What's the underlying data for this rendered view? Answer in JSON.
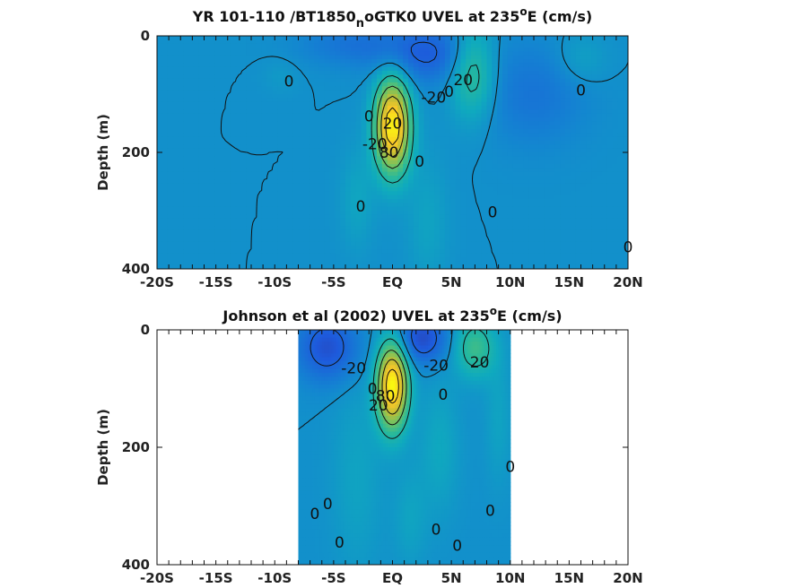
{
  "chart_data": [
    {
      "type": "heatmap",
      "title_main": "YR 101-110 /BT1850",
      "title_sub": "n",
      "title_rest": "oGTK0 UVEL at 235",
      "title_sup": "o",
      "title_end": "E (cm/s)",
      "xlabel": "",
      "ylabel": "Depth (m)",
      "xticks": [
        "-20S",
        "-15S",
        "-10S",
        "-5S",
        "EQ",
        "5N",
        "10N",
        "15N",
        "20N"
      ],
      "yticks": [
        "0",
        "200",
        "400"
      ],
      "xlim": [
        -20,
        20
      ],
      "ylim": [
        0,
        400
      ],
      "data_xrange": [
        -20,
        20
      ],
      "features": [
        {
          "lat": 0,
          "depth": 155,
          "sigma_lat": 1.0,
          "sigma_depth": 55,
          "u": 95
        },
        {
          "lat": 6.8,
          "depth": 60,
          "sigma_lat": 1.3,
          "sigma_depth": 55,
          "u": 30
        },
        {
          "lat": 3.0,
          "depth": 30,
          "sigma_lat": 2.8,
          "sigma_depth": 35,
          "u": -22
        },
        {
          "lat": -3.5,
          "depth": 15,
          "sigma_lat": 3.0,
          "sigma_depth": 25,
          "u": -12
        },
        {
          "lat": 12.0,
          "depth": 100,
          "sigma_lat": 3.0,
          "sigma_depth": 60,
          "u": -12
        },
        {
          "lat": 16.0,
          "depth": 40,
          "sigma_lat": 1.5,
          "sigma_depth": 30,
          "u": 8
        },
        {
          "lat": -3.0,
          "depth": 280,
          "sigma_lat": 1.0,
          "sigma_depth": 60,
          "u": 9
        },
        {
          "lat": 3.0,
          "depth": 320,
          "sigma_lat": 1.2,
          "sigma_depth": 80,
          "u": 8
        },
        {
          "lat": -9.5,
          "depth": 70,
          "sigma_lat": 1.0,
          "sigma_depth": 20,
          "u": 4
        }
      ],
      "contour_labels": [
        {
          "lat": -8.8,
          "depth": 78,
          "text": "0"
        },
        {
          "lat": -2.0,
          "depth": 138,
          "text": "0"
        },
        {
          "lat": 0.0,
          "depth": 150,
          "text": "20"
        },
        {
          "lat": -1.5,
          "depth": 185,
          "text": "-20"
        },
        {
          "lat": -0.3,
          "depth": 200,
          "text": "80"
        },
        {
          "lat": 2.3,
          "depth": 215,
          "text": "0"
        },
        {
          "lat": -2.7,
          "depth": 292,
          "text": "0"
        },
        {
          "lat": 3.5,
          "depth": 105,
          "text": "-20"
        },
        {
          "lat": 4.8,
          "depth": 95,
          "text": "0"
        },
        {
          "lat": 6.0,
          "depth": 75,
          "text": "20"
        },
        {
          "lat": 16.0,
          "depth": 93,
          "text": "0"
        },
        {
          "lat": 8.5,
          "depth": 302,
          "text": "0"
        },
        {
          "lat": 20.0,
          "depth": 362,
          "text": "0"
        }
      ]
    },
    {
      "type": "heatmap",
      "title_main": "Johnson et al (2002) UVEL at 235",
      "title_sup": "o",
      "title_end": "E (cm/s)",
      "xlabel": "",
      "ylabel": "Depth (m)",
      "xticks": [
        "-20S",
        "-15S",
        "-10S",
        "-5S",
        "EQ",
        "5N",
        "10N",
        "15N",
        "20N"
      ],
      "yticks": [
        "0",
        "200",
        "400"
      ],
      "xlim": [
        -20,
        20
      ],
      "ylim": [
        0,
        400
      ],
      "data_xrange": [
        -8,
        10
      ],
      "features": [
        {
          "lat": 0,
          "depth": 95,
          "sigma_lat": 0.9,
          "sigma_depth": 50,
          "u": 95
        },
        {
          "lat": 7.0,
          "depth": 30,
          "sigma_lat": 1.2,
          "sigma_depth": 35,
          "u": 30
        },
        {
          "lat": 2.5,
          "depth": 15,
          "sigma_lat": 1.5,
          "sigma_depth": 30,
          "u": -30
        },
        {
          "lat": -5.5,
          "depth": 30,
          "sigma_lat": 1.8,
          "sigma_depth": 40,
          "u": -28
        },
        {
          "lat": 4.0,
          "depth": 200,
          "sigma_lat": 1.2,
          "sigma_depth": 80,
          "u": 10
        },
        {
          "lat": -3.0,
          "depth": 250,
          "sigma_lat": 1.5,
          "sigma_depth": 120,
          "u": 8
        },
        {
          "lat": 9.0,
          "depth": 150,
          "sigma_lat": 0.8,
          "sigma_depth": 80,
          "u": 8
        },
        {
          "lat": 1.5,
          "depth": 320,
          "sigma_lat": 1.0,
          "sigma_depth": 60,
          "u": 8
        }
      ],
      "contour_labels": [
        {
          "lat": -3.3,
          "depth": 65,
          "text": "-20"
        },
        {
          "lat": -1.7,
          "depth": 100,
          "text": "0"
        },
        {
          "lat": -1.2,
          "depth": 128,
          "text": "20"
        },
        {
          "lat": -0.6,
          "depth": 112,
          "text": "80"
        },
        {
          "lat": 3.7,
          "depth": 60,
          "text": "-20"
        },
        {
          "lat": 4.3,
          "depth": 110,
          "text": "0"
        },
        {
          "lat": 7.4,
          "depth": 55,
          "text": "20"
        },
        {
          "lat": 10.0,
          "depth": 233,
          "text": "0"
        },
        {
          "lat": -6.6,
          "depth": 313,
          "text": "0"
        },
        {
          "lat": -5.5,
          "depth": 296,
          "text": "0"
        },
        {
          "lat": 8.3,
          "depth": 308,
          "text": "0"
        },
        {
          "lat": 3.7,
          "depth": 340,
          "text": "0"
        },
        {
          "lat": 5.5,
          "depth": 367,
          "text": "0"
        },
        {
          "lat": -4.5,
          "depth": 362,
          "text": "0"
        }
      ]
    }
  ]
}
